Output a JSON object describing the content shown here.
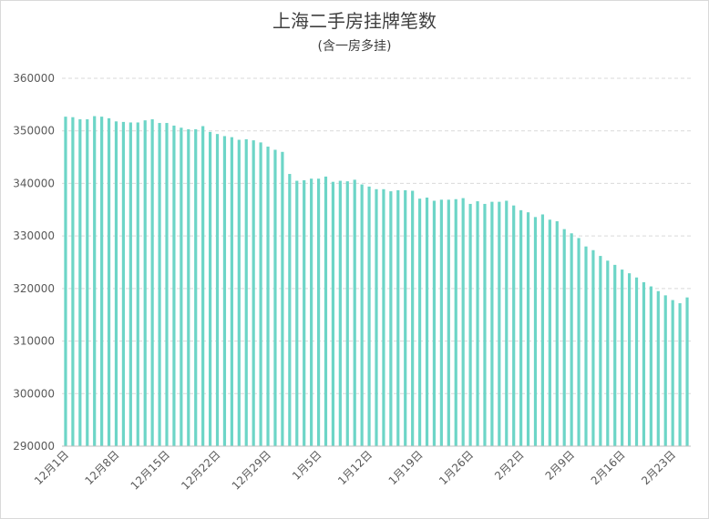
{
  "chart_data": {
    "type": "bar",
    "title": "上海二手房挂牌笔数",
    "subtitle": "(含一房多挂)",
    "categories": [
      "12月1日",
      null,
      null,
      null,
      null,
      null,
      null,
      "12月8日",
      null,
      null,
      null,
      null,
      null,
      null,
      "12月15日",
      null,
      null,
      null,
      null,
      null,
      null,
      "12月22日",
      null,
      null,
      null,
      null,
      null,
      null,
      "12月29日",
      null,
      null,
      null,
      null,
      null,
      null,
      "1月5日",
      null,
      null,
      null,
      null,
      null,
      null,
      "1月12日",
      null,
      null,
      null,
      null,
      null,
      null,
      "1月19日",
      null,
      null,
      null,
      null,
      null,
      null,
      "1月26日",
      null,
      null,
      null,
      null,
      null,
      null,
      "2月2日",
      null,
      null,
      null,
      null,
      null,
      null,
      "2月9日",
      null,
      null,
      null,
      null,
      null,
      null,
      "2月16日",
      null,
      null,
      null,
      null,
      null,
      null,
      "2月23日",
      null,
      null
    ],
    "values": [
      352700,
      352600,
      352200,
      352200,
      352800,
      352700,
      352400,
      351800,
      351700,
      351600,
      351600,
      352000,
      352200,
      351500,
      351500,
      351000,
      350600,
      350300,
      350300,
      350900,
      349800,
      349400,
      349000,
      348800,
      348300,
      348400,
      348200,
      347800,
      347000,
      346400,
      346000,
      341800,
      340500,
      340600,
      340900,
      340900,
      341300,
      340300,
      340500,
      340400,
      340700,
      339800,
      339400,
      338900,
      338900,
      338500,
      338700,
      338700,
      338600,
      337100,
      337300,
      336700,
      336900,
      336900,
      337000,
      337200,
      336100,
      336600,
      336100,
      336500,
      336500,
      336700,
      335800,
      334900,
      334500,
      333600,
      334100,
      333100,
      332800,
      331300,
      330500,
      329600,
      328000,
      327300,
      326200,
      325300,
      324500,
      323600,
      322900,
      322100,
      321200,
      320400,
      319500,
      318700,
      317800,
      317200,
      318300
    ],
    "color": "#6dd5c7",
    "ylim": [
      290000,
      360000
    ],
    "yticks": [
      290000,
      300000,
      310000,
      320000,
      330000,
      340000,
      350000,
      360000
    ],
    "grid": true
  }
}
